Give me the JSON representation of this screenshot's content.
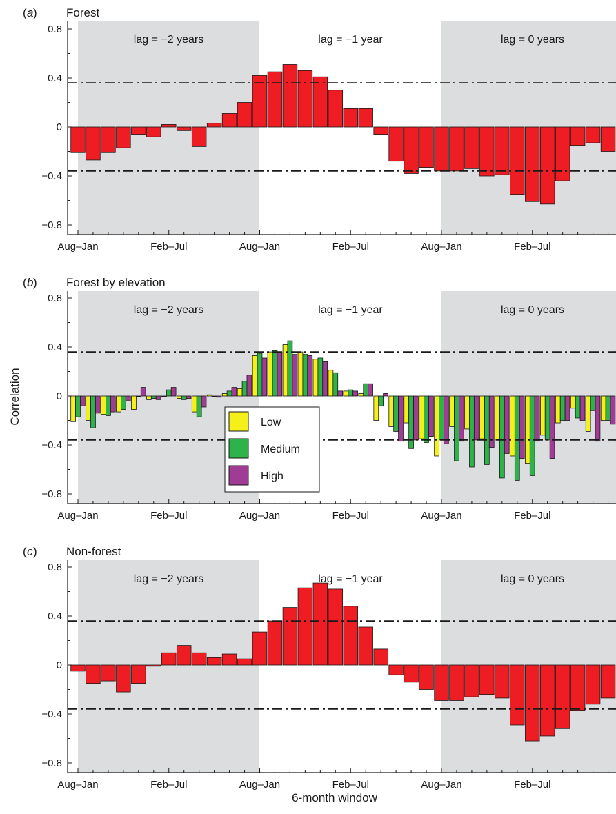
{
  "figure": {
    "ylabel": "Correlation",
    "xlabel": "6-month window",
    "legend_labels": [
      "Low",
      "Medium",
      "High"
    ],
    "colors": {
      "shade": "#dcdddf",
      "bar_single": "#ee1c23",
      "low": "#f5ef1a",
      "medium": "#2db34a",
      "high": "#a03b96",
      "axis": "#1a1a1a"
    }
  },
  "chart_data": [
    {
      "type": "bar",
      "panel_letter": "a",
      "title": "Forest",
      "ylim": [
        -0.85,
        0.85
      ],
      "yticks": [
        -0.8,
        -0.4,
        0,
        0.4,
        0.8
      ],
      "ytick_labels": [
        "−0.8",
        "−0.4",
        "0",
        "0.4",
        "0.8"
      ],
      "n_windows": 36,
      "xtick_labels": [
        {
          "window": 0,
          "label": "Aug–Jan"
        },
        {
          "window": 6,
          "label": "Feb–Jul"
        },
        {
          "window": 12,
          "label": "Aug–Jan"
        },
        {
          "window": 18,
          "label": "Feb–Jul"
        },
        {
          "window": 24,
          "label": "Aug–Jan"
        },
        {
          "window": 30,
          "label": "Feb–Jul"
        }
      ],
      "lag_labels": [
        "lag = −2 years",
        "lag = −1 year",
        "lag = 0 years"
      ],
      "significance_threshold": 0.36,
      "series": [
        {
          "values": [
            -0.21,
            -0.27,
            -0.21,
            -0.17,
            -0.06,
            -0.08,
            0.02,
            -0.03,
            -0.16,
            0.03,
            0.11,
            0.2,
            0.42,
            0.45,
            0.51,
            0.46,
            0.41,
            0.3,
            0.15,
            0.15,
            -0.06,
            -0.28,
            -0.38,
            -0.33,
            -0.36,
            -0.36,
            -0.34,
            -0.4,
            -0.39,
            -0.55,
            -0.61,
            -0.63,
            -0.44,
            -0.15,
            -0.13,
            -0.2
          ]
        }
      ]
    },
    {
      "type": "bar",
      "panel_letter": "b",
      "title": "Forest by elevation",
      "ylim": [
        -0.85,
        0.85
      ],
      "yticks": [
        -0.8,
        -0.4,
        0,
        0.4,
        0.8
      ],
      "ytick_labels": [
        "−0.8",
        "−0.4",
        "0",
        "0.4",
        "0.8"
      ],
      "n_windows": 36,
      "xtick_labels": [
        {
          "window": 0,
          "label": "Aug–Jan"
        },
        {
          "window": 6,
          "label": "Feb–Jul"
        },
        {
          "window": 12,
          "label": "Aug–Jan"
        },
        {
          "window": 18,
          "label": "Feb–Jul"
        },
        {
          "window": 24,
          "label": "Aug–Jan"
        },
        {
          "window": 30,
          "label": "Feb–Jul"
        }
      ],
      "lag_labels": [
        "lag = −2 years",
        "lag = −1 year",
        "lag = 0 years"
      ],
      "significance_threshold": 0.36,
      "series": [
        {
          "name": "Low",
          "values": [
            -0.21,
            -0.2,
            -0.15,
            -0.13,
            -0.11,
            -0.03,
            0.0,
            -0.02,
            -0.13,
            0.01,
            0.02,
            0.06,
            0.33,
            0.36,
            0.42,
            0.36,
            0.3,
            0.21,
            0.04,
            0.02,
            -0.2,
            -0.25,
            -0.22,
            -0.35,
            -0.49,
            -0.25,
            -0.27,
            -0.35,
            -0.36,
            -0.49,
            -0.55,
            -0.32,
            -0.22,
            -0.1,
            -0.29,
            -0.2
          ]
        },
        {
          "name": "Medium",
          "values": [
            -0.17,
            -0.26,
            -0.16,
            -0.11,
            0.0,
            -0.02,
            0.05,
            -0.03,
            -0.17,
            0.0,
            0.04,
            0.12,
            0.35,
            0.37,
            0.45,
            0.34,
            0.31,
            0.19,
            0.05,
            0.1,
            -0.08,
            -0.29,
            -0.43,
            -0.38,
            -0.36,
            -0.53,
            -0.58,
            -0.56,
            -0.67,
            -0.69,
            -0.65,
            -0.36,
            -0.2,
            -0.18,
            -0.12,
            -0.2
          ]
        },
        {
          "name": "High",
          "values": [
            -0.08,
            -0.14,
            -0.13,
            -0.04,
            0.07,
            -0.03,
            0.07,
            -0.02,
            -0.09,
            -0.01,
            0.07,
            0.17,
            0.31,
            0.36,
            0.34,
            0.33,
            0.28,
            0.04,
            0.04,
            0.1,
            0.02,
            -0.37,
            -0.36,
            -0.33,
            -0.39,
            -0.37,
            -0.36,
            -0.42,
            -0.47,
            -0.51,
            -0.37,
            -0.51,
            -0.2,
            -0.2,
            -0.37,
            -0.23
          ]
        }
      ]
    },
    {
      "type": "bar",
      "panel_letter": "c",
      "title": "Non-forest",
      "ylim": [
        -0.85,
        0.85
      ],
      "yticks": [
        -0.8,
        -0.4,
        0,
        0.4,
        0.8
      ],
      "ytick_labels": [
        "−0.8",
        "−0.4",
        "0",
        "0.4",
        "0.8"
      ],
      "n_windows": 36,
      "xtick_labels": [
        {
          "window": 0,
          "label": "Aug–Jan"
        },
        {
          "window": 6,
          "label": "Feb–Jul"
        },
        {
          "window": 12,
          "label": "Aug–Jan"
        },
        {
          "window": 18,
          "label": "Feb–Jul"
        },
        {
          "window": 24,
          "label": "Aug–Jan"
        },
        {
          "window": 30,
          "label": "Feb–Jul"
        }
      ],
      "lag_labels": [
        "lag = −2 years",
        "lag = −1 year",
        "lag = 0 years"
      ],
      "significance_threshold": 0.36,
      "series": [
        {
          "values": [
            -0.05,
            -0.15,
            -0.13,
            -0.22,
            -0.15,
            -0.01,
            0.1,
            0.16,
            0.1,
            0.06,
            0.09,
            0.05,
            0.27,
            0.36,
            0.47,
            0.63,
            0.67,
            0.62,
            0.48,
            0.31,
            0.13,
            -0.08,
            -0.14,
            -0.2,
            -0.29,
            -0.29,
            -0.26,
            -0.24,
            -0.27,
            -0.49,
            -0.62,
            -0.58,
            -0.52,
            -0.37,
            -0.32,
            -0.27
          ]
        }
      ]
    }
  ]
}
